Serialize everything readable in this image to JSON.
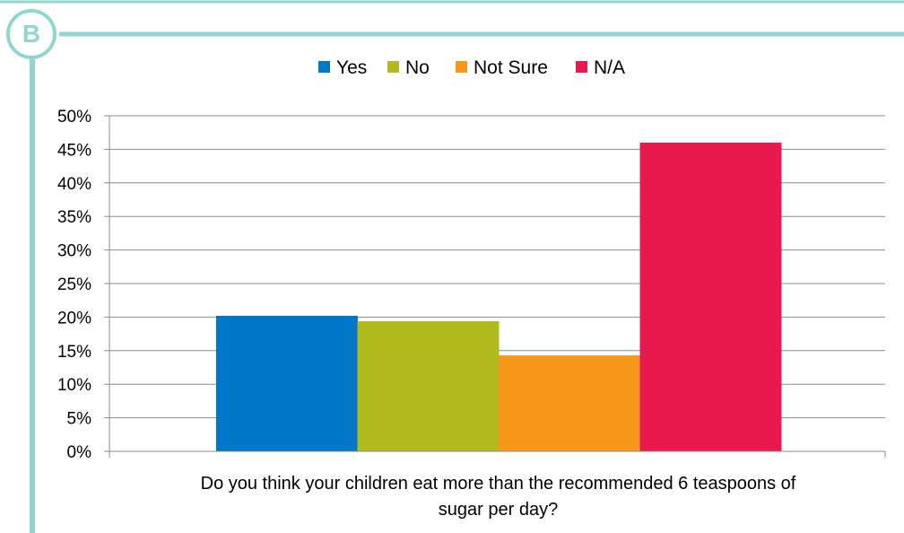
{
  "panel": {
    "label": "B",
    "accent_color": "#8fd6d0"
  },
  "chart_data": {
    "type": "bar",
    "categories": [
      "Do you think your children eat more than the recommended 6 teaspoons of sugar per day?"
    ],
    "xlabel_lines": [
      "Do you think your children eat more than the recommended 6 teaspoons of",
      "sugar per day?"
    ],
    "series": [
      {
        "name": "Yes",
        "values": [
          0.202
        ],
        "color": "#0077c8"
      },
      {
        "name": "No",
        "values": [
          0.194
        ],
        "color": "#b2bb1e"
      },
      {
        "name": "Not Sure",
        "values": [
          0.143
        ],
        "color": "#f7981d"
      },
      {
        "name": "N/A",
        "values": [
          0.46
        ],
        "color": "#e8194f"
      }
    ],
    "ylim": [
      0,
      0.5
    ],
    "y_ticks": [
      0,
      0.05,
      0.1,
      0.15,
      0.2,
      0.25,
      0.3,
      0.35,
      0.4,
      0.45,
      0.5
    ],
    "y_tick_labels": [
      "0%",
      "5%",
      "10%",
      "15%",
      "20%",
      "25%",
      "30%",
      "35%",
      "40%",
      "45%",
      "50%"
    ],
    "grid": true,
    "legend_position": "top"
  }
}
